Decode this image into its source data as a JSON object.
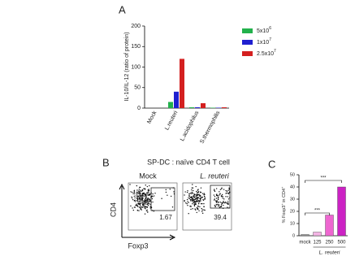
{
  "chart_data": [
    {
      "type": "bar",
      "panel_label": "A",
      "ylabel": "IL-10/IL-12 (ratio of protein)",
      "categories": [
        "Mock",
        "L.reuteri",
        "L.acidophilus",
        "S.thermophilis"
      ],
      "series": [
        {
          "name": [
            "5x10",
            "6"
          ],
          "color": "#22b14c",
          "values": [
            0,
            15,
            2,
            1
          ]
        },
        {
          "name": [
            "1x10",
            "7"
          ],
          "color": "#1f1fd0",
          "values": [
            0,
            40,
            2,
            1
          ]
        },
        {
          "name": [
            "2.5x10",
            "7"
          ],
          "color": "#d42020",
          "values": [
            0,
            120,
            12,
            2
          ]
        }
      ],
      "ylim": [
        0,
        200
      ],
      "yticks": [
        0,
        50,
        100,
        150,
        200
      ]
    },
    {
      "type": "bar",
      "panel_label": "C",
      "ylabel": [
        "% Foxp3",
        "+",
        " in CD4",
        "+"
      ],
      "xlabel": "L. reuteri",
      "categories": [
        "mock",
        "125",
        "250",
        "500"
      ],
      "values": [
        1,
        3,
        17,
        40
      ],
      "colors": [
        "#9a9a9a",
        "#f4b4e4",
        "#ee66d0",
        "#cc22c4"
      ],
      "ylim": [
        0,
        50
      ],
      "yticks": [
        0,
        10,
        20,
        30,
        40,
        50
      ],
      "annotations": [
        "***",
        "***"
      ]
    }
  ],
  "flow_panel": {
    "panel_label": "B",
    "title": "SP-DC : naïve CD4 T cell",
    "yaxis": "CD4",
    "xaxis": "Foxp3",
    "plots": [
      {
        "title": "Mock",
        "gate_percent": 1.67
      },
      {
        "title": "L. reuteri",
        "gate_percent": 39.4
      }
    ]
  }
}
